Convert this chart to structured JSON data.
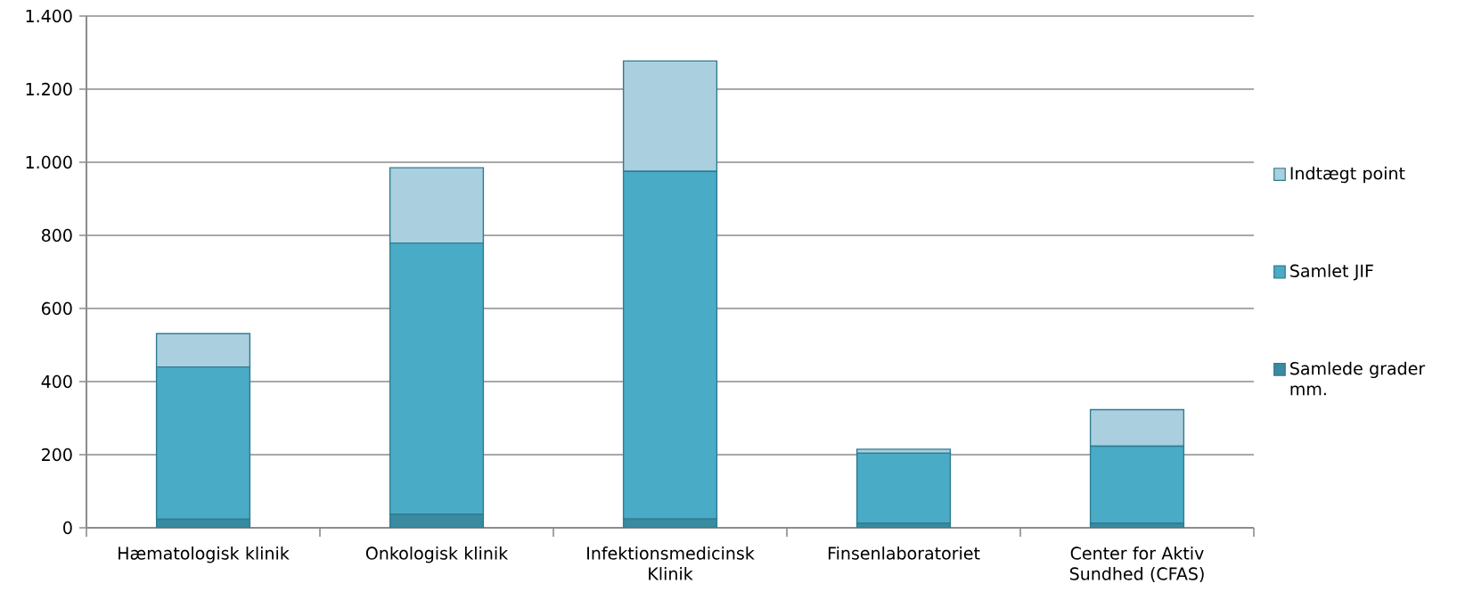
{
  "chart_data": {
    "type": "bar",
    "stacked": true,
    "categories": [
      "Hæmatologisk klinik",
      "Onkologisk klinik",
      "Infektionsmedicinsk Klinik",
      "Finsenlaboratoriet",
      "Center for Aktiv Sundhed (CFAS)"
    ],
    "series": [
      {
        "name": "Samlede grader mm.",
        "color": "#3a8aa0",
        "values": [
          23,
          37,
          24,
          12,
          12
        ]
      },
      {
        "name": "Samlet JIF",
        "color": "#4aabc6",
        "values": [
          417,
          742,
          951,
          192,
          211
        ]
      },
      {
        "name": "Indtægt point",
        "color": "#aacfdf",
        "values": [
          91,
          206,
          302,
          11,
          100
        ]
      }
    ],
    "ylim": [
      0,
      1400
    ],
    "yticks": [
      0,
      200,
      400,
      600,
      800,
      {
        "value": 1000,
        "label": "1.000"
      },
      {
        "value": 1200,
        "label": "1.200"
      },
      {
        "value": 1400,
        "label": "1.400"
      }
    ],
    "grid": "y",
    "legend": "right"
  }
}
